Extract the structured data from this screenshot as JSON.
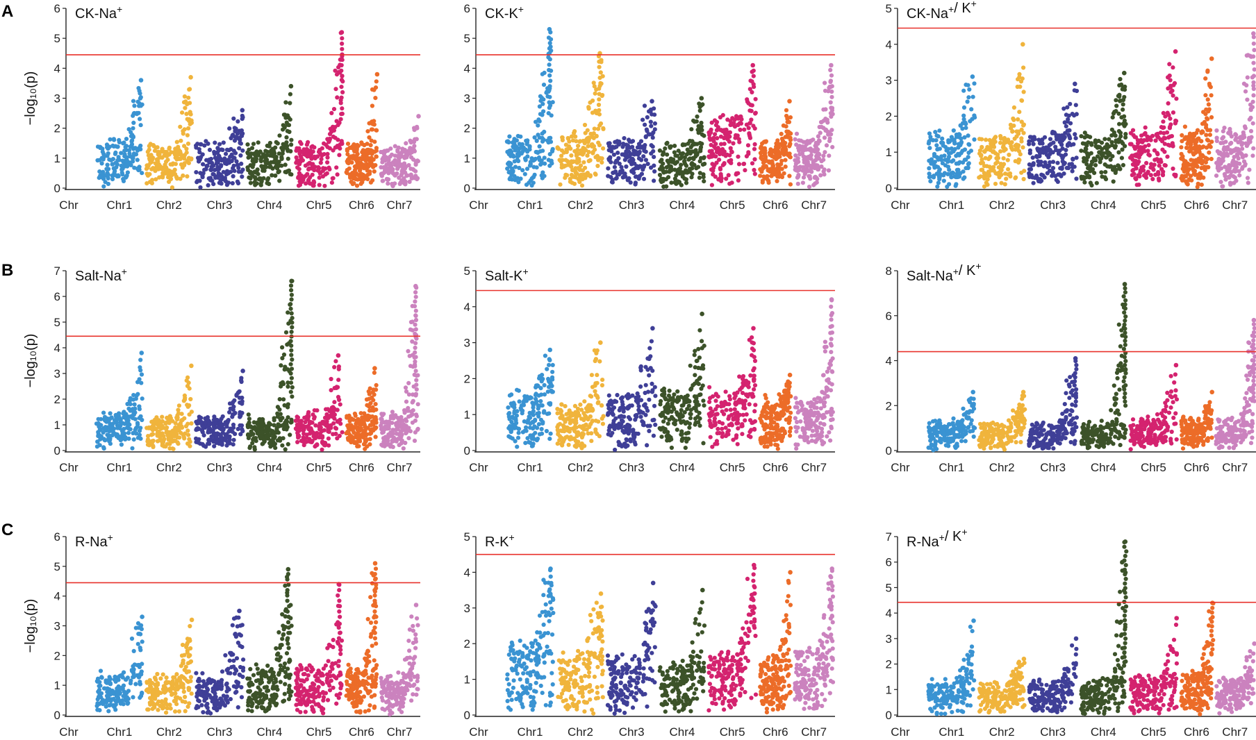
{
  "figure": {
    "row_labels": [
      "A",
      "B",
      "C"
    ],
    "y_axis_label": "−log₁₀(p)",
    "threshold_color": "#e8302a",
    "chromosome_colors": {
      "Chr1": "#3a93d2",
      "Chr2": "#f0b43c",
      "Chr3": "#3f3f97",
      "Chr4": "#3c5229",
      "Chr5": "#d4236f",
      "Chr6": "#ec6c28",
      "Chr7": "#cb82be"
    }
  },
  "chart_data": [
    {
      "type": "scatter",
      "row": "A",
      "col": 0,
      "title": "CK-Na⁺",
      "ylabel": "−log₁₀(p)",
      "xlabel": "",
      "ylim": [
        0,
        6
      ],
      "yticks": [
        0,
        1,
        2,
        3,
        4,
        5,
        6
      ],
      "threshold": 4.45,
      "categories": [
        "Chr",
        "Chr1",
        "Chr2",
        "Chr3",
        "Chr4",
        "Chr5",
        "Chr6",
        "Chr7"
      ],
      "series": [
        {
          "name": "Chr1",
          "base": 1.4,
          "peak": 3.6
        },
        {
          "name": "Chr2",
          "base": 1.2,
          "peak": 3.7
        },
        {
          "name": "Chr3",
          "base": 1.3,
          "peak": 2.6
        },
        {
          "name": "Chr4",
          "base": 1.2,
          "peak": 3.4
        },
        {
          "name": "Chr5",
          "base": 1.3,
          "peak": 5.2
        },
        {
          "name": "Chr6",
          "base": 1.3,
          "peak": 3.8
        },
        {
          "name": "Chr7",
          "base": 1.2,
          "peak": 2.4
        }
      ]
    },
    {
      "type": "scatter",
      "row": "A",
      "col": 1,
      "title": "CK-K⁺",
      "ylabel": "",
      "xlabel": "",
      "ylim": [
        0,
        6
      ],
      "yticks": [
        0,
        1,
        2,
        3,
        4,
        5,
        6
      ],
      "threshold": 4.45,
      "categories": [
        "Chr",
        "Chr1",
        "Chr2",
        "Chr3",
        "Chr4",
        "Chr5",
        "Chr6",
        "Chr7"
      ],
      "series": [
        {
          "name": "Chr1",
          "base": 1.5,
          "peak": 5.3
        },
        {
          "name": "Chr2",
          "base": 1.6,
          "peak": 4.5
        },
        {
          "name": "Chr3",
          "base": 1.4,
          "peak": 2.9
        },
        {
          "name": "Chr4",
          "base": 1.2,
          "peak": 3.0
        },
        {
          "name": "Chr5",
          "base": 2.2,
          "peak": 4.1
        },
        {
          "name": "Chr6",
          "base": 1.3,
          "peak": 2.9
        },
        {
          "name": "Chr7",
          "base": 1.5,
          "peak": 4.1
        }
      ]
    },
    {
      "type": "scatter",
      "row": "A",
      "col": 2,
      "title": "CK-Na⁺/ K⁺",
      "ylabel": "",
      "xlabel": "",
      "ylim": [
        0,
        5
      ],
      "yticks": [
        0,
        1,
        2,
        3,
        4,
        5
      ],
      "threshold": 4.45,
      "categories": [
        "Chr",
        "Chr1",
        "Chr2",
        "Chr3",
        "Chr4",
        "Chr5",
        "Chr6",
        "Chr7"
      ],
      "series": [
        {
          "name": "Chr1",
          "base": 1.3,
          "peak": 3.1
        },
        {
          "name": "Chr2",
          "base": 1.3,
          "peak": 4.0
        },
        {
          "name": "Chr3",
          "base": 1.3,
          "peak": 2.9
        },
        {
          "name": "Chr4",
          "base": 1.3,
          "peak": 3.2
        },
        {
          "name": "Chr5",
          "base": 1.4,
          "peak": 3.8
        },
        {
          "name": "Chr6",
          "base": 1.4,
          "peak": 3.6
        },
        {
          "name": "Chr7",
          "base": 1.4,
          "peak": 4.3
        }
      ]
    },
    {
      "type": "scatter",
      "row": "B",
      "col": 0,
      "title": "Salt-Na⁺",
      "ylabel": "−log₁₀(p)",
      "xlabel": "",
      "ylim": [
        0,
        7
      ],
      "yticks": [
        0,
        1,
        2,
        3,
        4,
        5,
        6,
        7
      ],
      "threshold": 4.45,
      "categories": [
        "Chr",
        "Chr1",
        "Chr2",
        "Chr3",
        "Chr4",
        "Chr5",
        "Chr6",
        "Chr7"
      ],
      "series": [
        {
          "name": "Chr1",
          "base": 1.2,
          "peak": 3.8
        },
        {
          "name": "Chr2",
          "base": 1.1,
          "peak": 3.3
        },
        {
          "name": "Chr3",
          "base": 1.1,
          "peak": 3.1
        },
        {
          "name": "Chr4",
          "base": 1.1,
          "peak": 6.6
        },
        {
          "name": "Chr5",
          "base": 1.3,
          "peak": 3.7
        },
        {
          "name": "Chr6",
          "base": 1.2,
          "peak": 3.2
        },
        {
          "name": "Chr7",
          "base": 1.2,
          "peak": 6.4
        }
      ]
    },
    {
      "type": "scatter",
      "row": "B",
      "col": 1,
      "title": "Salt-K⁺",
      "ylabel": "",
      "xlabel": "",
      "ylim": [
        0,
        5
      ],
      "yticks": [
        0,
        1,
        2,
        3,
        4,
        5
      ],
      "threshold": 4.45,
      "categories": [
        "Chr",
        "Chr1",
        "Chr2",
        "Chr3",
        "Chr4",
        "Chr5",
        "Chr6",
        "Chr7"
      ],
      "series": [
        {
          "name": "Chr1",
          "base": 1.5,
          "peak": 2.8
        },
        {
          "name": "Chr2",
          "base": 1.1,
          "peak": 3.0
        },
        {
          "name": "Chr3",
          "base": 1.3,
          "peak": 3.4
        },
        {
          "name": "Chr4",
          "base": 1.4,
          "peak": 3.8
        },
        {
          "name": "Chr5",
          "base": 1.5,
          "peak": 3.4
        },
        {
          "name": "Chr6",
          "base": 1.2,
          "peak": 2.1
        },
        {
          "name": "Chr7",
          "base": 1.2,
          "peak": 4.2
        }
      ]
    },
    {
      "type": "scatter",
      "row": "B",
      "col": 2,
      "title": "Salt-Na⁺/ K⁺",
      "ylabel": "",
      "xlabel": "",
      "ylim": [
        0,
        8
      ],
      "yticks": [
        0,
        2,
        4,
        6,
        8
      ],
      "threshold": 4.4,
      "categories": [
        "Chr",
        "Chr1",
        "Chr2",
        "Chr3",
        "Chr4",
        "Chr5",
        "Chr6",
        "Chr7"
      ],
      "series": [
        {
          "name": "Chr1",
          "base": 1.1,
          "peak": 2.6
        },
        {
          "name": "Chr2",
          "base": 1.0,
          "peak": 2.6
        },
        {
          "name": "Chr3",
          "base": 1.0,
          "peak": 4.1
        },
        {
          "name": "Chr4",
          "base": 1.0,
          "peak": 7.4
        },
        {
          "name": "Chr5",
          "base": 1.3,
          "peak": 3.8
        },
        {
          "name": "Chr6",
          "base": 1.2,
          "peak": 2.6
        },
        {
          "name": "Chr7",
          "base": 1.2,
          "peak": 5.8
        }
      ]
    },
    {
      "type": "scatter",
      "row": "C",
      "col": 0,
      "title": "R-Na⁺",
      "ylabel": "−log₁₀(p)",
      "xlabel": "",
      "ylim": [
        0,
        6
      ],
      "yticks": [
        0,
        1,
        2,
        3,
        4,
        5,
        6
      ],
      "threshold": 4.45,
      "categories": [
        "Chr",
        "Chr1",
        "Chr2",
        "Chr3",
        "Chr4",
        "Chr5",
        "Chr6",
        "Chr7"
      ],
      "series": [
        {
          "name": "Chr1",
          "base": 1.2,
          "peak": 3.3
        },
        {
          "name": "Chr2",
          "base": 1.1,
          "peak": 3.2
        },
        {
          "name": "Chr3",
          "base": 1.2,
          "peak": 3.5
        },
        {
          "name": "Chr4",
          "base": 1.4,
          "peak": 4.9
        },
        {
          "name": "Chr5",
          "base": 1.4,
          "peak": 4.4
        },
        {
          "name": "Chr6",
          "base": 1.4,
          "peak": 5.1
        },
        {
          "name": "Chr7",
          "base": 1.2,
          "peak": 3.7
        }
      ]
    },
    {
      "type": "scatter",
      "row": "C",
      "col": 1,
      "title": "R-K⁺",
      "ylabel": "",
      "xlabel": "",
      "ylim": [
        0,
        5
      ],
      "yticks": [
        0,
        1,
        2,
        3,
        4,
        5
      ],
      "threshold": 4.5,
      "categories": [
        "Chr",
        "Chr1",
        "Chr2",
        "Chr3",
        "Chr4",
        "Chr5",
        "Chr6",
        "Chr7"
      ],
      "series": [
        {
          "name": "Chr1",
          "base": 1.8,
          "peak": 4.1
        },
        {
          "name": "Chr2",
          "base": 1.6,
          "peak": 3.4
        },
        {
          "name": "Chr3",
          "base": 1.4,
          "peak": 3.7
        },
        {
          "name": "Chr4",
          "base": 1.2,
          "peak": 3.5
        },
        {
          "name": "Chr5",
          "base": 1.5,
          "peak": 4.2
        },
        {
          "name": "Chr6",
          "base": 1.4,
          "peak": 4.0
        },
        {
          "name": "Chr7",
          "base": 1.6,
          "peak": 4.1
        }
      ]
    },
    {
      "type": "scatter",
      "row": "C",
      "col": 2,
      "title": "R-Na⁺/ K⁺",
      "ylabel": "",
      "xlabel": "",
      "ylim": [
        0,
        7
      ],
      "yticks": [
        0,
        1,
        2,
        3,
        4,
        5,
        6,
        7
      ],
      "threshold": 4.42,
      "categories": [
        "Chr",
        "Chr1",
        "Chr2",
        "Chr3",
        "Chr4",
        "Chr5",
        "Chr6",
        "Chr7"
      ],
      "series": [
        {
          "name": "Chr1",
          "base": 1.2,
          "peak": 3.7
        },
        {
          "name": "Chr2",
          "base": 1.0,
          "peak": 2.2
        },
        {
          "name": "Chr3",
          "base": 1.1,
          "peak": 3.0
        },
        {
          "name": "Chr4",
          "base": 1.1,
          "peak": 6.8
        },
        {
          "name": "Chr5",
          "base": 1.3,
          "peak": 3.8
        },
        {
          "name": "Chr6",
          "base": 1.4,
          "peak": 4.4
        },
        {
          "name": "Chr7",
          "base": 1.2,
          "peak": 2.8
        }
      ]
    }
  ]
}
